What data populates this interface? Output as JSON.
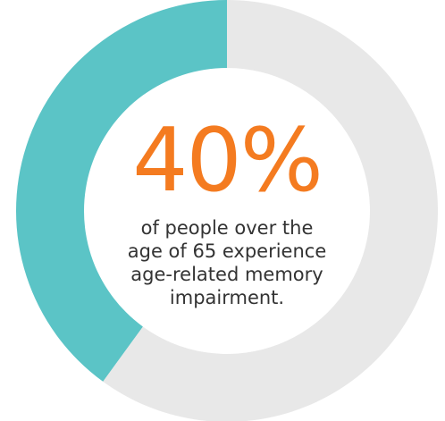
{
  "chart_data": {
    "type": "pie",
    "slices": [
      {
        "value": 40
      },
      {
        "value": 60
      }
    ],
    "colors": [
      "#5bc4c6",
      "#e8e8e8"
    ],
    "center_value": "40%",
    "caption_lines": [
      "of people over the",
      "age of 65 experience",
      "age-related memory",
      "impairment."
    ]
  },
  "colors": {
    "value": "#f47b20",
    "caption": "#333333"
  }
}
